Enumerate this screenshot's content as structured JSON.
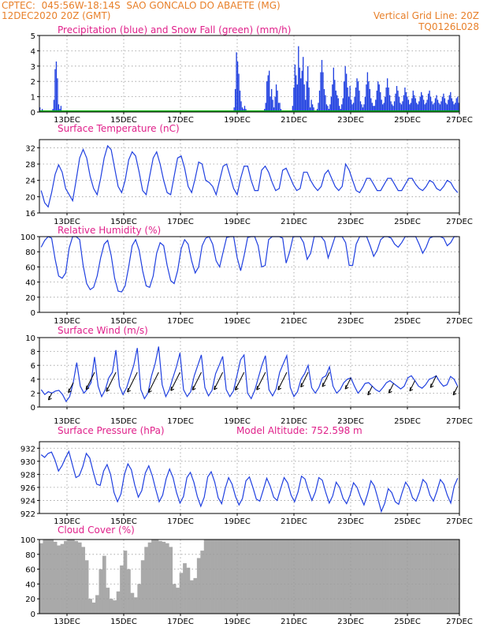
{
  "header": {
    "line1_left": "CPTEC:  045:56W-18:14S  SAO GONCALO DO ABAETE (MG)",
    "line2_left": "12DEC2020 20Z (GMT)",
    "line2_right": "Vertical Grid Line: 20Z",
    "line3_right": "TQ0126L028"
  },
  "colors": {
    "header": "#e8802a",
    "title": "#e0208a",
    "line": "#2040e0",
    "snow": "#00b000",
    "cloud": "#a9a9a9"
  },
  "x_ticks": [
    "13DEC",
    "15DEC",
    "17DEC",
    "19DEC",
    "21DEC",
    "23DEC",
    "25DEC",
    "27DEC"
  ],
  "chart_data": [
    {
      "type": "bar",
      "title": "Precipitation (blue) and Snow Fall (green) (mm/h)",
      "ylim": [
        0,
        5
      ],
      "yticks": [
        0,
        1,
        2,
        3,
        4,
        5
      ],
      "series": [
        {
          "name": "Precipitation",
          "values": [
            0.3,
            0.1,
            0.2,
            0,
            0,
            0,
            0,
            0,
            0,
            0,
            0,
            0.2,
            0.8,
            2.8,
            3.3,
            2.2,
            0.5,
            0.2,
            0.4,
            0,
            0,
            0,
            0,
            0,
            0,
            0,
            0,
            0,
            0,
            0,
            0,
            0,
            0,
            0,
            0,
            0,
            0,
            0,
            0,
            0,
            0,
            0,
            0,
            0,
            0,
            0,
            0,
            0,
            0,
            0,
            0,
            0,
            0,
            0,
            0,
            0,
            0,
            0,
            0,
            0,
            0,
            0,
            0,
            0,
            0,
            0,
            0,
            0,
            0,
            0,
            0,
            0,
            0,
            0,
            0,
            0,
            0,
            0,
            0,
            0,
            0,
            0,
            0,
            0,
            0,
            0,
            0,
            0,
            0,
            0,
            0,
            0,
            0,
            0,
            0,
            0,
            0,
            0,
            0,
            0,
            0,
            0,
            0,
            0,
            0,
            0,
            0,
            0,
            0,
            0,
            0,
            0,
            0,
            0,
            0,
            0,
            0,
            0,
            0,
            0,
            0,
            0,
            0,
            0,
            0,
            0,
            0,
            0,
            0,
            0,
            0,
            0,
            0,
            0,
            0,
            0,
            0,
            0,
            0,
            0,
            0,
            0,
            0,
            0,
            0,
            0,
            0,
            0,
            0,
            0,
            0,
            0,
            0,
            0,
            0,
            0,
            0,
            0,
            0,
            0,
            0,
            0,
            0,
            0,
            0,
            0,
            0.3,
            1.5,
            3.9,
            3.3,
            2.5,
            1.4,
            0.7,
            0.3,
            0.2,
            0.4,
            0.2,
            0,
            0,
            0,
            0,
            0,
            0,
            0,
            0,
            0,
            0,
            0,
            0,
            0,
            0,
            0,
            0.2,
            0.6,
            2.0,
            2.4,
            2.7,
            1.0,
            1.5,
            0.8,
            0.3,
            1.0,
            1.8,
            1.4,
            0.6,
            0.6,
            0.2,
            0,
            0,
            0,
            0,
            0,
            0,
            0,
            0,
            0,
            0.4,
            1.6,
            3.1,
            2.4,
            1.8,
            4.3,
            2.9,
            2.2,
            2.7,
            3.6,
            1.8,
            0.8,
            2.0,
            3.0,
            1.6,
            0.3,
            0.8,
            0.5,
            0.3,
            0,
            0,
            0.2,
            0.6,
            1.4,
            2.6,
            3.4,
            2.6,
            1.5,
            1.1,
            0.5,
            0.4,
            0.2,
            0.5,
            1.0,
            1.8,
            2.9,
            2.1,
            1.4,
            1.1,
            0.9,
            0.4,
            0.2,
            0.5,
            0.9,
            2.0,
            3.0,
            2.5,
            1.6,
            1.0,
            1.7,
            0.8,
            0.5,
            0.6,
            1.0,
            1.6,
            2.2,
            2.0,
            1.4,
            0.7,
            0.5,
            0.3,
            0.5,
            1.0,
            1.8,
            2.6,
            2.0,
            1.5,
            0.9,
            0.6,
            0.4,
            0.4,
            0.8,
            1.4,
            2.0,
            1.8,
            1.3,
            0.8,
            0.5,
            0.6,
            1.0,
            1.6,
            2.2,
            1.6,
            1.1,
            0.7,
            0.5,
            0.4,
            0.7,
            1.2,
            1.7,
            1.4,
            1.0,
            0.6,
            0.5,
            0.7,
            1.1,
            1.6,
            1.3,
            1.0,
            0.8,
            0.5,
            0.6,
            0.9,
            1.4,
            1.1,
            0.9,
            0.6,
            0.5,
            0.7,
            1.0,
            1.3,
            1.1,
            0.8,
            0.5,
            0.6,
            0.8,
            1.2,
            1.4,
            1.0,
            0.7,
            0.5,
            0.6,
            0.9,
            1.1,
            0.8,
            0.6,
            0.5,
            0.7,
            1.0,
            1.2,
            0.9,
            0.6,
            0.5,
            0.8,
            1.1,
            1.3,
            0.9,
            0.7,
            0.5,
            0.6,
            0.9,
            1.0,
            0.6
          ]
        },
        {
          "name": "Snow Fall",
          "values": [
            0
          ]
        }
      ]
    },
    {
      "type": "line",
      "title": "Surface Temperature (nC)",
      "ylim": [
        16,
        34
      ],
      "yticks": [
        16,
        20,
        24,
        28,
        32
      ],
      "values": [
        21.5,
        18.5,
        17.5,
        21,
        25.5,
        27.8,
        26,
        22,
        20.5,
        19,
        24,
        29.5,
        31.6,
        29.5,
        25,
        22,
        20.5,
        24.5,
        29.5,
        32.5,
        31.5,
        27,
        22.5,
        21,
        24,
        29,
        31,
        30,
        26,
        21.5,
        20.5,
        25,
        29.5,
        31,
        28,
        24,
        21,
        20.5,
        25,
        29.5,
        30,
        27,
        22.5,
        21,
        24.5,
        28.5,
        28,
        24,
        23.5,
        22.5,
        20.5,
        24,
        27.5,
        28,
        25,
        22,
        20.5,
        24.5,
        27.5,
        27.5,
        24,
        21.5,
        21.5,
        26.5,
        27.5,
        26,
        23.5,
        21.5,
        22,
        26.5,
        27,
        25,
        23,
        21.5,
        22,
        26,
        26,
        24,
        22.5,
        21.5,
        22.5,
        25.5,
        26.5,
        24.5,
        22.5,
        21.5,
        22.5,
        28,
        26.5,
        24,
        21.5,
        21,
        22.5,
        24.5,
        24.5,
        23,
        21.5,
        21.5,
        23,
        24.5,
        24.5,
        23,
        21.5,
        21.5,
        23,
        24.5,
        24.5,
        23,
        22,
        21.5,
        22.5,
        24,
        23.5,
        22,
        21.5,
        22.5,
        24,
        23.5,
        22,
        21
      ]
    },
    {
      "type": "line",
      "title": "Relative Humidity (%)",
      "ylim": [
        0,
        100
      ],
      "yticks": [
        0,
        20,
        40,
        60,
        80,
        100
      ],
      "values": [
        86,
        95,
        100,
        98,
        70,
        48,
        45,
        52,
        85,
        100,
        100,
        96,
        62,
        38,
        30,
        33,
        48,
        72,
        90,
        95,
        75,
        45,
        28,
        27,
        35,
        60,
        88,
        96,
        82,
        55,
        35,
        33,
        48,
        78,
        92,
        88,
        62,
        42,
        38,
        55,
        84,
        96,
        90,
        68,
        52,
        60,
        88,
        98,
        100,
        90,
        68,
        60,
        80,
        99,
        100,
        100,
        72,
        55,
        75,
        99,
        100,
        100,
        88,
        60,
        62,
        96,
        100,
        100,
        100,
        98,
        65,
        80,
        100,
        100,
        100,
        92,
        70,
        78,
        100,
        100,
        100,
        94,
        72,
        86,
        100,
        100,
        100,
        92,
        62,
        62,
        90,
        100,
        100,
        100,
        88,
        74,
        82,
        96,
        100,
        100,
        98,
        90,
        86,
        92,
        100,
        100,
        100,
        100,
        90,
        78,
        86,
        98,
        100,
        100,
        100,
        98,
        88,
        92,
        100,
        100
      ]
    },
    {
      "type": "line",
      "title": "Surface Wind (m/s)",
      "ylim": [
        0,
        10
      ],
      "yticks": [
        0,
        2,
        4,
        6,
        8,
        10
      ],
      "values": [
        2.5,
        1.8,
        2.2,
        2.0,
        2.3,
        2.4,
        1.8,
        0.8,
        1.5,
        3.5,
        6.4,
        3.0,
        2.0,
        2.6,
        3.5,
        7.2,
        3.0,
        1.5,
        2.5,
        4.2,
        5.0,
        8.2,
        3.0,
        1.8,
        2.8,
        4.4,
        6.0,
        8.5,
        2.5,
        1.2,
        2.0,
        4.5,
        6.2,
        8.7,
        3.2,
        1.5,
        2.5,
        4.2,
        5.8,
        7.8,
        2.5,
        1.5,
        2.2,
        4.5,
        6.0,
        7.5,
        2.8,
        1.6,
        2.4,
        4.8,
        6.0,
        7.3,
        2.5,
        1.5,
        2.3,
        4.5,
        6.8,
        7.5,
        2.0,
        1.2,
        2.4,
        4.2,
        6.0,
        7.4,
        2.5,
        1.6,
        2.6,
        5.0,
        6.2,
        7.4,
        2.8,
        1.5,
        2.2,
        4.0,
        4.8,
        6.0,
        2.8,
        2.0,
        2.8,
        4.2,
        4.5,
        5.8,
        3.0,
        2.0,
        2.5,
        3.5,
        4.0,
        4.2,
        3.0,
        2.0,
        2.6,
        3.4,
        3.5,
        3.0,
        2.5,
        2.2,
        2.8,
        3.5,
        3.8,
        3.4,
        3.0,
        2.6,
        3.0,
        4.2,
        4.5,
        3.8,
        3.0,
        2.7,
        3.2,
        4.0,
        4.2,
        4.5,
        3.6,
        3.0,
        3.2,
        4.4,
        4.0,
        3.0
      ]
    },
    {
      "type": "line",
      "title": "Surface Pressure (hPa)",
      "annotation": "Model Altitude: 752.598 m",
      "ylim": [
        922,
        933
      ],
      "yticks": [
        922,
        924,
        926,
        928,
        930,
        932
      ],
      "values": [
        931,
        930.6,
        931.2,
        931.4,
        930.2,
        928.5,
        929.3,
        930.5,
        931.5,
        929.5,
        927.5,
        927.8,
        929.2,
        931.2,
        930.5,
        928.4,
        926.5,
        926.3,
        928.5,
        929.5,
        928,
        925.2,
        923.8,
        925,
        928,
        929.6,
        928.7,
        926.3,
        924.5,
        925.5,
        928.2,
        929.3,
        927.8,
        925.7,
        923.8,
        924.8,
        927.3,
        928.8,
        927.5,
        925.2,
        923.6,
        924.6,
        927.5,
        928.3,
        926.8,
        924.6,
        923.1,
        924.5,
        927.6,
        928.4,
        926.8,
        924.4,
        923.5,
        925.8,
        927.5,
        926.5,
        924.6,
        923.3,
        924.3,
        927.0,
        927.6,
        926.0,
        924.2,
        923.9,
        925.6,
        927.4,
        926.2,
        924.5,
        924.0,
        925.8,
        927.5,
        926.7,
        924.8,
        923.8,
        925.3,
        927.7,
        927.3,
        925.5,
        924.0,
        925.3,
        927.5,
        927.1,
        925.2,
        923.6,
        924.7,
        926.8,
        926.0,
        924.3,
        923.5,
        924.8,
        926.7,
        926.0,
        924.5,
        923.3,
        924.9,
        927.0,
        926.2,
        924.3,
        922.3,
        923.6,
        925.8,
        925.2,
        923.8,
        923.4,
        925.2,
        926.8,
        926.0,
        924.4,
        923.9,
        925.3,
        927.2,
        926.6,
        924.8,
        923.9,
        925.4,
        927.2,
        926.5,
        924.8,
        923.6,
        926.2,
        927.4
      ]
    },
    {
      "type": "bar",
      "title": "Cloud Cover (%)",
      "ylim": [
        0,
        100
      ],
      "yticks": [
        0,
        20,
        40,
        60,
        80,
        100
      ],
      "values": [
        95,
        100,
        100,
        100,
        97,
        92,
        94,
        98,
        100,
        100,
        98,
        96,
        90,
        72,
        20,
        15,
        25,
        60,
        78,
        35,
        20,
        18,
        30,
        65,
        85,
        60,
        28,
        22,
        40,
        72,
        90,
        96,
        100,
        100,
        98,
        97,
        95,
        90,
        40,
        35,
        55,
        68,
        62,
        45,
        48,
        75,
        85,
        100,
        100,
        100,
        100,
        100,
        100,
        100,
        100,
        100,
        100,
        100,
        100,
        100,
        100,
        100,
        100,
        100,
        100,
        100,
        100,
        100,
        100,
        100,
        100,
        100,
        100,
        100,
        100,
        100,
        100,
        100,
        100,
        100,
        100,
        100,
        100,
        100,
        100,
        100,
        100,
        100,
        100,
        100,
        100,
        100,
        100,
        100,
        100,
        100,
        100,
        100,
        100,
        100,
        100,
        100,
        100,
        100,
        100,
        100,
        100,
        100,
        100,
        100,
        100,
        100,
        100,
        100,
        100,
        100,
        100,
        100,
        100,
        100
      ]
    }
  ]
}
